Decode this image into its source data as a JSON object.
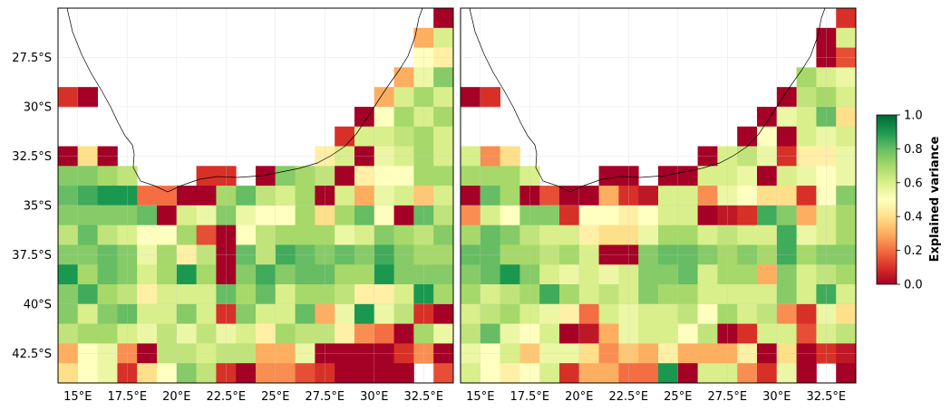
{
  "figure": {
    "colormap": "RdYlGn",
    "background": "#ffffff",
    "nodata_color": "#ffffff"
  },
  "axes": {
    "lon_ticks": [
      15,
      17.5,
      20,
      22.5,
      25,
      27.5,
      30,
      32.5
    ],
    "lon_labels": [
      "15°E",
      "17.5°E",
      "20°E",
      "22.5°E",
      "25°E",
      "27.5°E",
      "30°E",
      "32.5°E"
    ],
    "lat_ticks": [
      -27.5,
      -30,
      -32.5,
      -35,
      -37.5,
      -40,
      -42.5
    ],
    "lat_labels": [
      "27.5°S",
      "30°S",
      "32.5°S",
      "35°S",
      "37.5°S",
      "40°S",
      "42.5°S"
    ],
    "xlim": [
      14,
      34
    ],
    "ylim": [
      -44,
      -25
    ],
    "grid": true
  },
  "colorbar": {
    "label": "Explained variance",
    "ticks": [
      0.0,
      0.2,
      0.4,
      0.6,
      0.8,
      1.0
    ],
    "tick_labels": [
      "0.0",
      "0.2",
      "0.4",
      "0.6",
      "0.8",
      "1.0"
    ],
    "range": [
      0,
      1
    ]
  },
  "chart_data": [
    {
      "type": "heatmap",
      "panel": "left",
      "lon_edges_start": 14,
      "lat_edges_start": -25,
      "cell_size_deg": 1,
      "values": [
        [
          null,
          null,
          null,
          null,
          null,
          null,
          null,
          null,
          null,
          null,
          null,
          null,
          null,
          null,
          null,
          null,
          null,
          null,
          null,
          0.0
        ],
        [
          null,
          null,
          null,
          null,
          null,
          null,
          null,
          null,
          null,
          null,
          null,
          null,
          null,
          null,
          null,
          null,
          null,
          null,
          0.3,
          0.6
        ],
        [
          null,
          null,
          null,
          null,
          null,
          null,
          null,
          null,
          null,
          null,
          null,
          null,
          null,
          null,
          null,
          null,
          null,
          null,
          0.5,
          0.45
        ],
        [
          null,
          null,
          null,
          null,
          null,
          null,
          null,
          null,
          null,
          null,
          null,
          null,
          null,
          null,
          null,
          null,
          null,
          0.3,
          0.55,
          0.75
        ],
        [
          0.1,
          0.0,
          null,
          null,
          null,
          null,
          null,
          null,
          null,
          null,
          null,
          null,
          null,
          null,
          null,
          null,
          0.3,
          0.6,
          0.7,
          0.6
        ],
        [
          null,
          null,
          null,
          null,
          null,
          null,
          null,
          null,
          null,
          null,
          null,
          null,
          null,
          null,
          null,
          0.0,
          0.5,
          0.7,
          0.6,
          0.7
        ],
        [
          null,
          null,
          null,
          null,
          null,
          null,
          null,
          null,
          null,
          null,
          null,
          null,
          null,
          null,
          0.1,
          0.6,
          0.6,
          0.65,
          0.7,
          0.6
        ],
        [
          0.0,
          0.4,
          0.0,
          null,
          null,
          null,
          null,
          null,
          null,
          null,
          null,
          null,
          null,
          0.45,
          0.6,
          0.0,
          0.55,
          0.6,
          0.7,
          0.6
        ],
        [
          0.75,
          0.75,
          0.7,
          0.65,
          null,
          null,
          null,
          0.1,
          0.1,
          null,
          0.0,
          0.75,
          0.7,
          0.65,
          0.0,
          0.45,
          0.5,
          0.5,
          0.7,
          0.7
        ],
        [
          0.8,
          0.85,
          0.9,
          0.9,
          0.2,
          0.2,
          0.0,
          0.0,
          0.7,
          0.8,
          0.65,
          0.6,
          0.7,
          0.0,
          0.6,
          0.3,
          0.55,
          0.6,
          0.35,
          0.6
        ],
        [
          0.75,
          0.75,
          0.75,
          0.75,
          0.8,
          0.0,
          0.6,
          0.55,
          0.75,
          0.55,
          0.5,
          0.5,
          0.7,
          0.4,
          0.7,
          0.8,
          0.5,
          0.0,
          0.8,
          0.65
        ],
        [
          0.65,
          0.8,
          0.65,
          0.6,
          0.5,
          0.5,
          0.7,
          0.15,
          0.0,
          0.5,
          0.65,
          0.7,
          0.7,
          0.7,
          0.55,
          0.6,
          0.75,
          0.7,
          0.65,
          0.75
        ],
        [
          0.75,
          0.75,
          0.8,
          0.75,
          0.55,
          0.7,
          0.45,
          0.65,
          0.0,
          0.8,
          0.65,
          0.85,
          0.8,
          0.75,
          0.8,
          0.75,
          0.85,
          0.75,
          0.7,
          0.7
        ],
        [
          0.9,
          0.7,
          0.8,
          0.75,
          0.6,
          0.7,
          0.9,
          0.7,
          0.0,
          0.75,
          0.85,
          0.75,
          0.8,
          0.8,
          0.7,
          0.7,
          0.9,
          0.75,
          0.75,
          0.75
        ],
        [
          0.75,
          0.85,
          0.7,
          0.65,
          0.45,
          0.6,
          0.6,
          0.6,
          0.8,
          0.7,
          0.8,
          0.6,
          0.7,
          0.7,
          0.65,
          0.45,
          0.45,
          0.6,
          0.9,
          0.7
        ],
        [
          0.75,
          0.6,
          0.75,
          0.8,
          0.6,
          0.6,
          0.75,
          0.6,
          0.1,
          0.75,
          0.6,
          0.6,
          0.8,
          0.3,
          0.55,
          0.9,
          0.55,
          0.65,
          0.1,
          0.0
        ],
        [
          0.65,
          0.7,
          0.7,
          0.6,
          0.55,
          0.65,
          0.55,
          0.65,
          0.55,
          0.6,
          0.45,
          0.7,
          0.65,
          0.65,
          0.45,
          0.25,
          0.2,
          0.0,
          0.7,
          0.55
        ],
        [
          0.3,
          0.5,
          0.55,
          0.25,
          0.0,
          0.65,
          0.65,
          0.6,
          0.65,
          0.65,
          0.3,
          0.3,
          0.55,
          0.0,
          0.0,
          0.0,
          0.0,
          0.1,
          0.25,
          0.0
        ],
        [
          0.4,
          0.5,
          0.55,
          0.1,
          0.4,
          0.5,
          0.75,
          0.65,
          0.1,
          0.0,
          0.25,
          0.25,
          0.15,
          0.1,
          0.0,
          0.0,
          0.0,
          0.0,
          null,
          0.15
        ]
      ]
    },
    {
      "type": "heatmap",
      "panel": "right",
      "lon_edges_start": 14,
      "lat_edges_start": -25,
      "cell_size_deg": 1,
      "values": [
        [
          null,
          null,
          null,
          null,
          null,
          null,
          null,
          null,
          null,
          null,
          null,
          null,
          null,
          null,
          null,
          null,
          null,
          null,
          null,
          0.1
        ],
        [
          null,
          null,
          null,
          null,
          null,
          null,
          null,
          null,
          null,
          null,
          null,
          null,
          null,
          null,
          null,
          null,
          null,
          null,
          0.0,
          0.6
        ],
        [
          null,
          null,
          null,
          null,
          null,
          null,
          null,
          null,
          null,
          null,
          null,
          null,
          null,
          null,
          null,
          null,
          null,
          null,
          0.0,
          0.15
        ],
        [
          null,
          null,
          null,
          null,
          null,
          null,
          null,
          null,
          null,
          null,
          null,
          null,
          null,
          null,
          null,
          null,
          null,
          0.7,
          0.6,
          0.55
        ],
        [
          0.0,
          0.1,
          null,
          null,
          null,
          null,
          null,
          null,
          null,
          null,
          null,
          null,
          null,
          null,
          null,
          null,
          0.0,
          0.65,
          0.7,
          0.6
        ],
        [
          null,
          null,
          null,
          null,
          null,
          null,
          null,
          null,
          null,
          null,
          null,
          null,
          null,
          null,
          null,
          0.0,
          0.55,
          0.6,
          0.8,
          0.4
        ],
        [
          null,
          null,
          null,
          null,
          null,
          null,
          null,
          null,
          null,
          null,
          null,
          null,
          null,
          null,
          0.0,
          0.5,
          0.0,
          0.6,
          0.55,
          0.6
        ],
        [
          0.6,
          0.25,
          0.4,
          null,
          null,
          null,
          null,
          null,
          null,
          null,
          null,
          null,
          0.0,
          0.6,
          0.65,
          0.55,
          0.1,
          0.45,
          0.45,
          0.55
        ],
        [
          0.7,
          0.7,
          0.7,
          0.6,
          null,
          null,
          null,
          0.0,
          0.0,
          null,
          0.0,
          0.0,
          0.6,
          0.6,
          0.55,
          0.0,
          0.6,
          0.55,
          0.5,
          0.55
        ],
        [
          0.0,
          0.8,
          0.7,
          0.0,
          0.15,
          0.0,
          0.0,
          0.3,
          0.1,
          0.05,
          0.6,
          0.6,
          0.25,
          0.55,
          0.5,
          0.4,
          0.4,
          0.1,
          0.5,
          0.75
        ],
        [
          0.25,
          0.6,
          0.5,
          0.75,
          0.75,
          0.1,
          0.5,
          0.5,
          0.45,
          0.5,
          0.6,
          0.6,
          0.0,
          0.05,
          0.1,
          0.85,
          0.75,
          0.3,
          0.6,
          0.7
        ],
        [
          0.7,
          0.8,
          0.75,
          0.65,
          0.6,
          0.6,
          0.45,
          0.4,
          0.4,
          0.55,
          0.7,
          0.7,
          0.6,
          0.65,
          0.6,
          0.6,
          0.85,
          0.55,
          0.6,
          0.7
        ],
        [
          0.8,
          0.8,
          0.7,
          0.7,
          0.65,
          0.7,
          0.6,
          0.0,
          0.0,
          0.75,
          0.8,
          0.8,
          0.75,
          0.7,
          0.75,
          0.7,
          0.85,
          0.7,
          0.75,
          0.75
        ],
        [
          0.75,
          0.8,
          0.9,
          0.75,
          0.6,
          0.55,
          0.6,
          0.55,
          0.6,
          0.75,
          0.75,
          0.8,
          0.6,
          0.7,
          0.7,
          0.3,
          0.75,
          0.6,
          0.65,
          0.7
        ],
        [
          0.7,
          0.6,
          0.65,
          0.7,
          0.85,
          0.7,
          0.6,
          0.65,
          0.6,
          0.75,
          0.7,
          0.7,
          0.6,
          0.6,
          0.6,
          0.6,
          0.75,
          0.6,
          0.85,
          0.6
        ],
        [
          0.6,
          0.65,
          0.7,
          0.6,
          0.55,
          0.45,
          0.2,
          0.6,
          0.55,
          0.6,
          0.6,
          0.65,
          0.5,
          0.7,
          0.6,
          0.65,
          0.25,
          0.1,
          0.55,
          0.4
        ],
        [
          0.65,
          0.8,
          0.55,
          0.5,
          0.6,
          0.0,
          0.05,
          0.3,
          0.55,
          0.6,
          0.6,
          0.5,
          0.65,
          0.0,
          0.1,
          0.6,
          0.6,
          0.15,
          0.6,
          0.65
        ],
        [
          0.55,
          0.5,
          0.6,
          0.35,
          0.55,
          0.55,
          0.4,
          0.25,
          0.35,
          0.3,
          0.45,
          0.3,
          0.3,
          0.3,
          0.45,
          0.0,
          0.4,
          0.0,
          0.1,
          0.05
        ],
        [
          0.6,
          0.5,
          0.45,
          0.5,
          0.6,
          0.1,
          0.3,
          0.3,
          0.2,
          0.2,
          0.9,
          0.0,
          0.6,
          0.6,
          0.25,
          0.1,
          0.55,
          0.0,
          null,
          0.0
        ]
      ]
    }
  ]
}
